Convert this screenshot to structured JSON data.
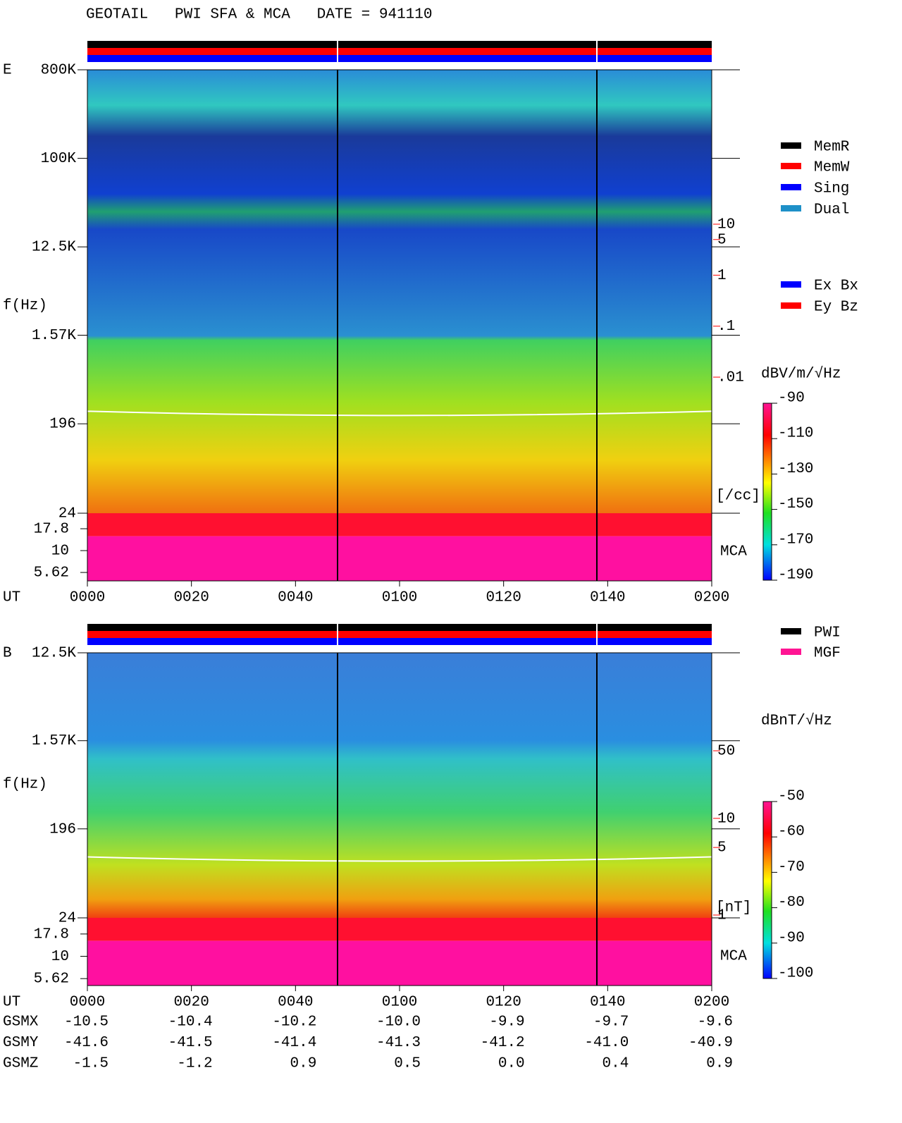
{
  "title": "GEOTAIL   PWI SFA & MCA   DATE = 941110",
  "chart_data": [
    {
      "type": "spectrogram",
      "panel_label": "E",
      "y_label": "f(Hz)",
      "x_label": "UT",
      "log_y": true,
      "ylim": [
        24,
        800000
      ],
      "yticks": [
        {
          "value": 800000,
          "label": "800K"
        },
        {
          "value": 100000,
          "label": "100K"
        },
        {
          "value": 12500,
          "label": "12.5K"
        },
        {
          "value": 1570,
          "label": "1.57K"
        },
        196,
        24
      ],
      "mca_label": "MCA",
      "mca_ylim": [
        4.5,
        26.8
      ],
      "mca_yticks": [
        17.8,
        10,
        5.62
      ],
      "xlim": [
        0,
        120
      ],
      "xticks": [
        {
          "value": 0,
          "label": "0000"
        },
        {
          "value": 20,
          "label": "0020"
        },
        {
          "value": 40,
          "label": "0040"
        },
        {
          "value": 60,
          "label": "0100"
        },
        {
          "value": 80,
          "label": "0120"
        },
        {
          "value": 100,
          "label": "0140"
        },
        {
          "value": 120,
          "label": "0200"
        }
      ],
      "colorbar": {
        "label": "dBV/m/√Hz",
        "lim": [
          -190,
          -90
        ],
        "ticks": [
          -90,
          -110,
          -130,
          -150,
          -170,
          -190
        ]
      },
      "density": {
        "label": "[/cc]",
        "color": "#ff0000",
        "lim": [
          0.01,
          10
        ],
        "ticks": [
          10,
          5,
          1,
          {
            "value": 0.1,
            "label": ".1"
          },
          {
            "value": 0.01,
            "label": ".01"
          }
        ]
      },
      "legend": [
        {
          "name": "MemR",
          "color": "#000000"
        },
        {
          "name": "MemW",
          "color": "#ff0000"
        },
        {
          "name": "Sing",
          "color": "#0000ff"
        },
        {
          "name": "Dual",
          "color": "#1e90c8"
        }
      ],
      "legend2": [
        {
          "name": "Ex Bx",
          "color": "#0000ff"
        },
        {
          "name": "Ey Bz",
          "color": "#ff0000"
        }
      ]
    },
    {
      "type": "spectrogram",
      "panel_label": "B",
      "y_label": "f(Hz)",
      "x_label": "UT",
      "log_y": true,
      "ylim": [
        24,
        12500
      ],
      "yticks": [
        {
          "value": 12500,
          "label": "12.5K"
        },
        {
          "value": 1570,
          "label": "1.57K"
        },
        196,
        24
      ],
      "mca_label": "MCA",
      "mca_ylim": [
        4.7,
        27
      ],
      "mca_yticks": [
        17.8,
        10,
        5.62
      ],
      "xlim": [
        0,
        120
      ],
      "xticks": [
        {
          "value": 0,
          "label": "0000"
        },
        {
          "value": 20,
          "label": "0020"
        },
        {
          "value": 40,
          "label": "0040"
        },
        {
          "value": 60,
          "label": "0100"
        },
        {
          "value": 80,
          "label": "0120"
        },
        {
          "value": 100,
          "label": "0140"
        },
        {
          "value": 120,
          "label": "0200"
        }
      ],
      "colorbar": {
        "label": "dBnT/√Hz",
        "lim": [
          -100,
          -50
        ],
        "ticks": [
          -50,
          -60,
          -70,
          -80,
          -90,
          -100
        ]
      },
      "density": {
        "label": "[nT]",
        "color": "#ff0000",
        "lim": [
          1,
          50
        ],
        "ticks": [
          50,
          10,
          5,
          1
        ]
      },
      "legend": [
        {
          "name": "PWI",
          "color": "#000000"
        },
        {
          "name": "MGF",
          "color": "#ff1493"
        }
      ]
    }
  ],
  "orbit": {
    "rows": [
      {
        "name": "GSMX",
        "values": [
          "-10.5",
          "-10.4",
          "-10.2",
          "-10.0",
          "-9.9",
          "-9.7",
          "-9.6"
        ]
      },
      {
        "name": "GSMY",
        "values": [
          "-41.6",
          "-41.5",
          "-41.4",
          "-41.3",
          "-41.2",
          "-41.0",
          "-40.9"
        ]
      },
      {
        "name": "GSMZ",
        "values": [
          "-1.5",
          "-1.2",
          "0.9",
          "0.5",
          "0.0",
          "0.4",
          "0.9"
        ]
      }
    ]
  }
}
